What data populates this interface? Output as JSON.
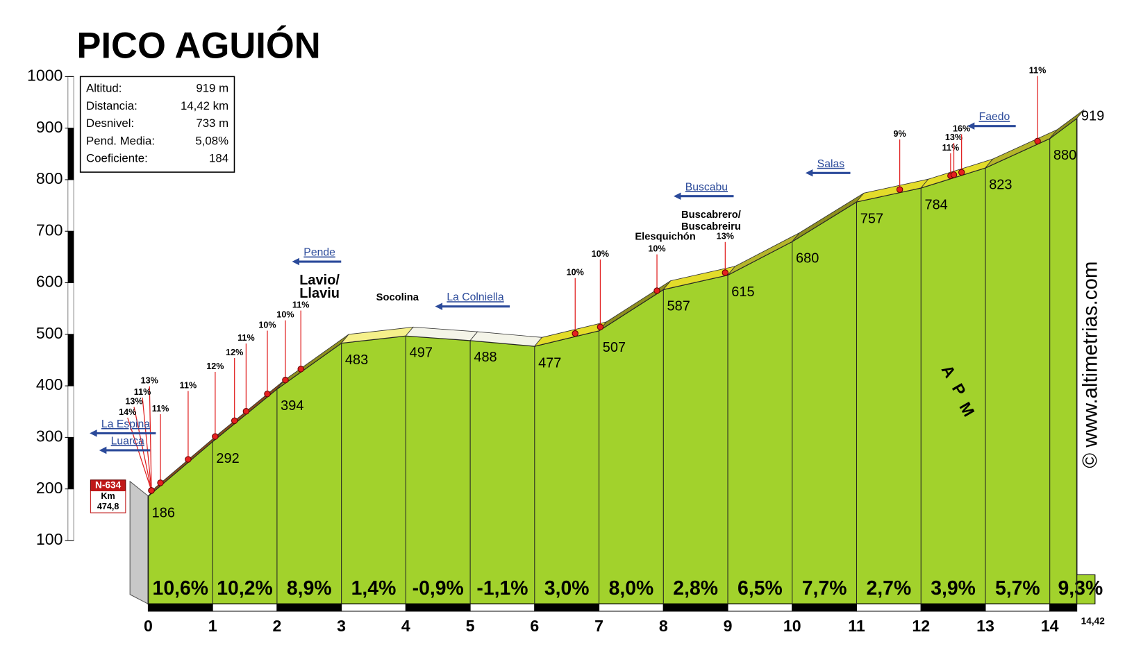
{
  "chart_data": {
    "type": "profile",
    "title": "PICO AGUIÓN",
    "info_box": [
      [
        "Altitud:",
        "919 m"
      ],
      [
        "Distancia:",
        "14,42 km"
      ],
      [
        "Desnivel:",
        "733 m"
      ],
      [
        "Pend. Media:",
        "5,08%"
      ],
      [
        "Coeficiente:",
        "184"
      ]
    ],
    "x": [
      0,
      1,
      2,
      3,
      4,
      5,
      6,
      7,
      8,
      9,
      10,
      11,
      12,
      13,
      14,
      14.42
    ],
    "values": [
      186,
      292,
      394,
      483,
      497,
      488,
      477,
      507,
      587,
      615,
      680,
      757,
      784,
      823,
      880,
      919
    ],
    "gradients": [
      {
        "value": 10.6,
        "label": "10,6%"
      },
      {
        "value": 10.2,
        "label": "10,2%"
      },
      {
        "value": 8.9,
        "label": "8,9%"
      },
      {
        "value": 1.4,
        "label": "1,4%"
      },
      {
        "value": -0.9,
        "label": "-0,9%"
      },
      {
        "value": -1.1,
        "label": "-1,1%"
      },
      {
        "value": 3.0,
        "label": "3,0%"
      },
      {
        "value": 8.0,
        "label": "8,0%"
      },
      {
        "value": 2.8,
        "label": "2,8%"
      },
      {
        "value": 6.5,
        "label": "6,5%"
      },
      {
        "value": 7.7,
        "label": "7,7%"
      },
      {
        "value": 2.7,
        "label": "2,7%"
      },
      {
        "value": 3.9,
        "label": "3,9%"
      },
      {
        "value": 5.7,
        "label": "5,7%"
      },
      {
        "value": 9.3,
        "label": "9,3%"
      }
    ],
    "xlim": [
      0,
      14.42
    ],
    "xticks": [
      0,
      1,
      2,
      3,
      4,
      5,
      6,
      7,
      8,
      9,
      10,
      11,
      12,
      13,
      14,
      {
        "value": 14.42,
        "label": "14,42"
      }
    ],
    "ylim": [
      100,
      1000
    ],
    "yticks": [
      100,
      200,
      300,
      400,
      500,
      600,
      700,
      800,
      900,
      1000
    ],
    "places": [
      {
        "text": "Lavio/",
        "x": 2.66,
        "y": 604
      },
      {
        "text": "Llaviu",
        "x": 2.66,
        "y": 578
      },
      {
        "text": "Socolina",
        "x": 3.87,
        "y": 571
      },
      {
        "text": "Elesquichón",
        "x": 8.03,
        "y": 689
      },
      {
        "text": "Buscabrero/",
        "x": 8.74,
        "y": 731
      },
      {
        "text": "Buscabreiru",
        "x": 8.74,
        "y": 708
      }
    ],
    "directions": [
      {
        "text": "La Espina",
        "x": -0.35,
        "y": 325
      },
      {
        "text": "Luarca",
        "x": -0.32,
        "y": 292
      },
      {
        "text": "Pende",
        "x": 2.66,
        "y": 658
      },
      {
        "text": "La Colniella",
        "x": 5.08,
        "y": 571
      },
      {
        "text": "Buscabu",
        "x": 8.67,
        "y": 785
      },
      {
        "text": "Salas",
        "x": 10.6,
        "y": 830
      },
      {
        "text": "Faedo",
        "x": 13.14,
        "y": 921
      }
    ],
    "grade_marks": [
      {
        "text": "13%",
        "x": 0.02,
        "y": 409
      },
      {
        "text": "11%",
        "x": -0.09,
        "y": 387
      },
      {
        "text": "13%",
        "x": -0.22,
        "y": 369
      },
      {
        "text": "14%",
        "x": -0.32,
        "y": 348
      },
      {
        "text": "11%",
        "x": 0.19,
        "y": 355
      },
      {
        "text": "11%",
        "x": 0.62,
        "y": 400
      },
      {
        "text": "12%",
        "x": 1.04,
        "y": 437
      },
      {
        "text": "12%",
        "x": 1.34,
        "y": 464
      },
      {
        "text": "11%",
        "x": 1.52,
        "y": 492
      },
      {
        "text": "10%",
        "x": 1.85,
        "y": 517
      },
      {
        "text": "10%",
        "x": 2.13,
        "y": 537
      },
      {
        "text": "11%",
        "x": 2.37,
        "y": 556
      },
      {
        "text": "10%",
        "x": 6.63,
        "y": 619
      },
      {
        "text": "10%",
        "x": 7.02,
        "y": 655
      },
      {
        "text": "10%",
        "x": 7.9,
        "y": 665
      },
      {
        "text": "13%",
        "x": 8.96,
        "y": 689
      },
      {
        "text": "9%",
        "x": 11.67,
        "y": 888
      },
      {
        "text": "11%",
        "x": 12.46,
        "y": 861
      },
      {
        "text": "13%",
        "x": 12.51,
        "y": 881
      },
      {
        "text": "16%",
        "x": 12.63,
        "y": 898
      },
      {
        "text": "11%",
        "x": 13.81,
        "y": 1011
      }
    ],
    "road_sign": {
      "road": "N-634",
      "unit": "Km",
      "km": "474,8"
    },
    "logo": [
      "A",
      "P",
      "M"
    ],
    "credit": "© www.altimetrias.com",
    "area_color": "#a2d22c"
  }
}
